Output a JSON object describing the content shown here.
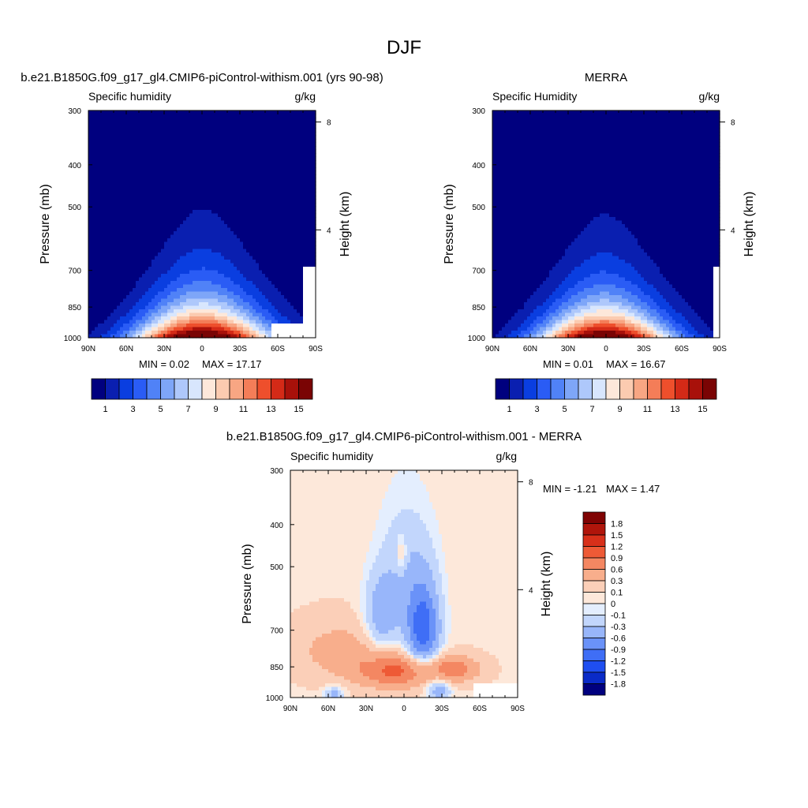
{
  "page": {
    "title": "DJF"
  },
  "colors": {
    "seq_palette": [
      "#00007f",
      "#0a1fb0",
      "#0a3ee0",
      "#2a5cf5",
      "#5082f7",
      "#7ea6f8",
      "#aec8fb",
      "#d8e6fd",
      "#fde8da",
      "#fbcbb0",
      "#f8a683",
      "#f47d58",
      "#ee4f2c",
      "#d42a17",
      "#a8110a",
      "#7a0404"
    ],
    "div_palette": [
      "#00007f",
      "#0a2bc8",
      "#1f4ef0",
      "#3f6ef6",
      "#6a92f8",
      "#98b6fa",
      "#c2d6fc",
      "#e4eefe",
      "#fde8da",
      "#fbcfb8",
      "#f8ae8c",
      "#f48762",
      "#ee5a36",
      "#d8301a",
      "#b0150b",
      "#800303"
    ],
    "frame": "#000000",
    "missing": "#ffffff"
  },
  "chart_data": [
    {
      "id": "model",
      "type": "contour",
      "title": "b.e21.B1850G.f09_g17_gl4.CMIP6-piControl-withism.001 (yrs 90-98)",
      "left_label": "Specific humidity",
      "right_label": "g/kg",
      "xlabel": "",
      "ylabel": "Pressure (mb)",
      "y2label": "Height (km)",
      "x_ticks": [
        "90N",
        "60N",
        "30N",
        "0",
        "30S",
        "60S",
        "90S"
      ],
      "x_range": [
        90,
        -90
      ],
      "y_ticks": [
        300,
        400,
        500,
        700,
        850,
        1000
      ],
      "y_range": [
        300,
        1000
      ],
      "y_scale": "log",
      "y2_ticks": [
        8,
        4
      ],
      "min_text": "MIN =   0.02",
      "max_text": "MAX =  17.17",
      "min": 0.02,
      "max": 17.17,
      "colorbar": {
        "orientation": "horizontal",
        "labels": [
          "1",
          "3",
          "5",
          "7",
          "9",
          "11",
          "13",
          "15"
        ]
      },
      "field": {
        "kind": "humidity",
        "peak": 17.17,
        "peak_lat": 0,
        "peak_p": 1000,
        "lat_spread": 22,
        "scale_height_mb": 160,
        "sfc_mask": [
          {
            "lat": -55,
            "p": 930
          },
          {
            "lat": -80,
            "p": 690
          }
        ]
      }
    },
    {
      "id": "obs",
      "type": "contour",
      "title": "MERRA",
      "left_label": "Specific Humidity",
      "right_label": "g/kg",
      "xlabel": "",
      "ylabel": "Pressure (mb)",
      "y2label": "Height (km)",
      "x_ticks": [
        "90N",
        "60N",
        "30N",
        "0",
        "30S",
        "60S",
        "90S"
      ],
      "x_range": [
        90,
        -90
      ],
      "y_ticks": [
        300,
        400,
        500,
        700,
        850,
        1000
      ],
      "y_range": [
        300,
        1000
      ],
      "y_scale": "log",
      "y2_ticks": [
        8,
        4
      ],
      "min_text": "MIN =   0.01",
      "max_text": "MAX =  16.67",
      "min": 0.01,
      "max": 16.67,
      "colorbar": {
        "orientation": "horizontal",
        "labels": [
          "1",
          "3",
          "5",
          "7",
          "9",
          "11",
          "13",
          "15"
        ]
      },
      "field": {
        "kind": "humidity",
        "peak": 16.67,
        "peak_lat": 2,
        "peak_p": 1000,
        "lat_spread": 21,
        "scale_height_mb": 155,
        "sfc_mask": [
          {
            "lat": -85,
            "p": 690
          }
        ]
      }
    },
    {
      "id": "diff",
      "type": "contour",
      "title": "b.e21.B1850G.f09_g17_gl4.CMIP6-piControl-withism.001 - MERRA",
      "left_label": "Specific humidity",
      "right_label": "g/kg",
      "xlabel": "",
      "ylabel": "Pressure (mb)",
      "y2label": "Height (km)",
      "x_ticks": [
        "90N",
        "60N",
        "30N",
        "0",
        "30S",
        "60S",
        "90S"
      ],
      "x_range": [
        90,
        -90
      ],
      "y_ticks": [
        300,
        400,
        500,
        700,
        850,
        1000
      ],
      "y_range": [
        300,
        1000
      ],
      "y_scale": "log",
      "y2_ticks": [
        8,
        4
      ],
      "min_text": "MIN =  -1.21",
      "max_text": "MAX =   1.47",
      "min": -1.21,
      "max": 1.47,
      "colorbar": {
        "orientation": "vertical",
        "labels": [
          "1.8",
          "1.5",
          "1.2",
          "0.9",
          "0.6",
          "0.3",
          "0.1",
          "0",
          "-0.1",
          "-0.3",
          "-0.6",
          "-0.9",
          "-1.2",
          "-1.5",
          "-1.8"
        ]
      },
      "field": {
        "kind": "difference",
        "sfc_mask": [
          {
            "lat": -55,
            "p": 930
          }
        ]
      }
    }
  ]
}
